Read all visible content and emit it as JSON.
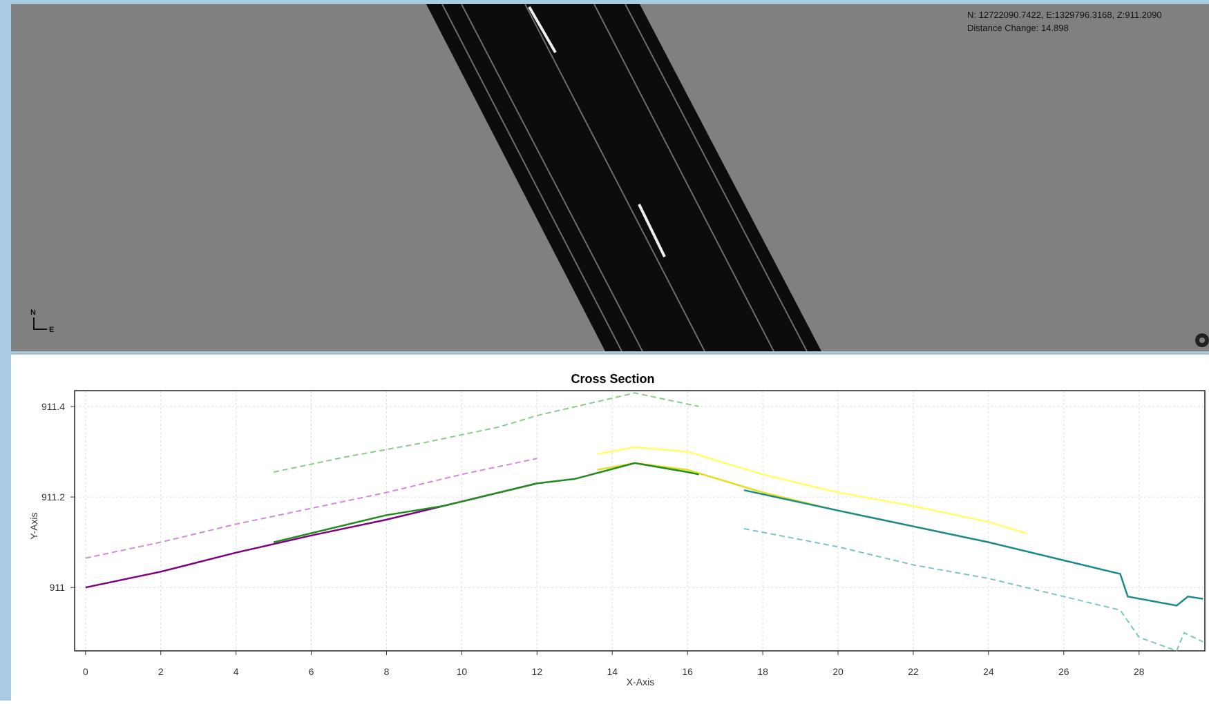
{
  "map": {
    "coordinates": "N: 12722090.7422, E:1329796.3168, Z:911.2090",
    "distance_change": "Distance Change: 14.898",
    "north": "N",
    "east": "E"
  },
  "chart_data": {
    "type": "line",
    "title": "Cross Section",
    "x_label": "X-Axis",
    "y_label": "Y-Axis",
    "xlim": [
      -0.29,
      29.75
    ],
    "ylim": [
      910.86,
      911.435
    ],
    "xticks": [
      0,
      2,
      4,
      6,
      8,
      10,
      12,
      14,
      16,
      18,
      20,
      22,
      24,
      26,
      28
    ],
    "yticks": [
      911,
      911.2,
      911.4
    ],
    "grid": true,
    "series": [
      {
        "color": "#d08ad8",
        "dashed": true,
        "x": [
          0,
          2,
          4,
          6,
          8,
          10,
          12
        ],
        "values": [
          911.065,
          911.1,
          911.14,
          911.175,
          911.21,
          911.25,
          911.285
        ]
      },
      {
        "color": "#8cc98c",
        "dashed": true,
        "x": [
          5,
          7,
          9,
          11,
          12,
          14.6,
          16.3
        ],
        "values": [
          911.255,
          911.29,
          911.32,
          911.355,
          911.38,
          911.43,
          911.4
        ]
      },
      {
        "color": "#ffff66",
        "dashed": false,
        "x": [
          13.6,
          14.6,
          16,
          18,
          20,
          22,
          24,
          25
        ],
        "values": [
          911.295,
          911.31,
          911.3,
          911.25,
          911.21,
          911.18,
          911.145,
          911.12
        ]
      },
      {
        "color": "#7fc4c4",
        "dashed": true,
        "x": [
          17.5,
          20,
          22,
          24,
          26,
          27.5,
          28,
          29,
          29.2,
          29.7
        ],
        "values": [
          911.13,
          911.09,
          911.05,
          911.02,
          910.98,
          910.95,
          910.89,
          910.86,
          910.9,
          910.88
        ]
      },
      {
        "color": "#e0e020",
        "dashed": false,
        "x": [
          13.6,
          14.6,
          16,
          18,
          20,
          22,
          24
        ],
        "values": [
          911.26,
          911.275,
          911.26,
          911.21,
          911.17,
          911.135,
          911.1
        ]
      },
      {
        "color": "#800080",
        "dashed": false,
        "x": [
          0,
          2,
          4,
          6,
          8,
          10,
          12
        ],
        "values": [
          911.0,
          911.035,
          911.077,
          911.115,
          911.15,
          911.19,
          911.23
        ]
      },
      {
        "color": "#228b22",
        "dashed": false,
        "x": [
          5,
          8,
          9.5,
          12,
          13,
          14.6,
          16,
          16.3
        ],
        "values": [
          911.1,
          911.16,
          911.18,
          911.23,
          911.24,
          911.275,
          911.255,
          911.25
        ]
      },
      {
        "color": "#1a8a8a",
        "dashed": false,
        "x": [
          17.5,
          20,
          24,
          26,
          27.5,
          27.7,
          29,
          29.3,
          29.7
        ],
        "values": [
          911.215,
          911.17,
          911.1,
          911.06,
          911.03,
          910.98,
          910.96,
          910.98,
          910.975
        ]
      }
    ]
  }
}
